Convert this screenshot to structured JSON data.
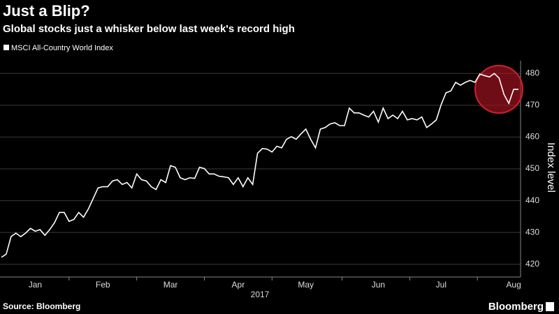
{
  "chart_data": {
    "type": "line",
    "title": "Just a Blip?",
    "subtitle": "Global stocks just a whisker below last week's record high",
    "y_label": "Index level",
    "x_label": "2017",
    "source": "Source: Bloomberg",
    "brand": "Bloomberg",
    "categories": [
      null,
      null,
      null,
      null,
      null,
      null,
      null,
      "Jan",
      null,
      null,
      null,
      null,
      null,
      null,
      null,
      null,
      null,
      null,
      null,
      null,
      null,
      "Feb",
      null,
      null,
      null,
      null,
      null,
      null,
      null,
      null,
      null,
      null,
      null,
      null,
      null,
      "Mar",
      null,
      null,
      null,
      null,
      null,
      null,
      null,
      null,
      null,
      null,
      null,
      null,
      null,
      "Apr",
      null,
      null,
      null,
      null,
      null,
      null,
      null,
      null,
      null,
      null,
      null,
      null,
      null,
      "May",
      null,
      null,
      null,
      null,
      null,
      null,
      null,
      null,
      null,
      null,
      null,
      null,
      null,
      null,
      "Jun",
      null,
      null,
      null,
      null,
      null,
      null,
      null,
      null,
      null,
      null,
      null,
      null,
      "Jul",
      null,
      null,
      null,
      null,
      null,
      null,
      null,
      null,
      null,
      null,
      null,
      null,
      null,
      null,
      "Aug",
      null
    ],
    "series": [
      {
        "name": "MSCI All-Country World Index",
        "color": "#ffffff",
        "values": [
          422.2,
          423.2,
          428.7,
          429.8,
          428.7,
          429.8,
          431.3,
          430.4,
          430.9,
          429.1,
          430.9,
          433.1,
          436.3,
          436.3,
          433.5,
          434.1,
          436.3,
          434.8,
          437.4,
          440.7,
          444,
          444.4,
          444.4,
          446.2,
          446.6,
          445.1,
          445.7,
          444,
          448.4,
          446.6,
          446.2,
          444.4,
          443.5,
          446.6,
          445.7,
          451,
          450.5,
          447.2,
          446.6,
          447.2,
          447,
          450.5,
          450.1,
          448.4,
          448.4,
          447.7,
          447.5,
          447.2,
          445.1,
          447.2,
          444.4,
          447.2,
          445.1,
          454.9,
          456.4,
          456.2,
          455.3,
          457.1,
          456.6,
          459.3,
          460.1,
          459.3,
          461,
          462.5,
          459.3,
          456.6,
          462.5,
          463,
          464.1,
          464.5,
          463.6,
          463.6,
          469.1,
          467.6,
          467.6,
          466.9,
          466.3,
          468.1,
          464.7,
          469.1,
          465.8,
          466.9,
          465.8,
          468.1,
          465.4,
          465.8,
          465.4,
          466.3,
          463,
          464.1,
          465.4,
          470.2,
          473.9,
          474.5,
          477.2,
          476.3,
          477.2,
          477.8,
          477.2,
          479.8,
          479.3,
          478.9,
          480,
          478.5,
          473.4,
          470.6,
          475,
          475
        ]
      }
    ],
    "ylim": [
      416,
      484
    ],
    "yticks": [
      420,
      430,
      440,
      450,
      460,
      470,
      480
    ],
    "grid": true
  }
}
